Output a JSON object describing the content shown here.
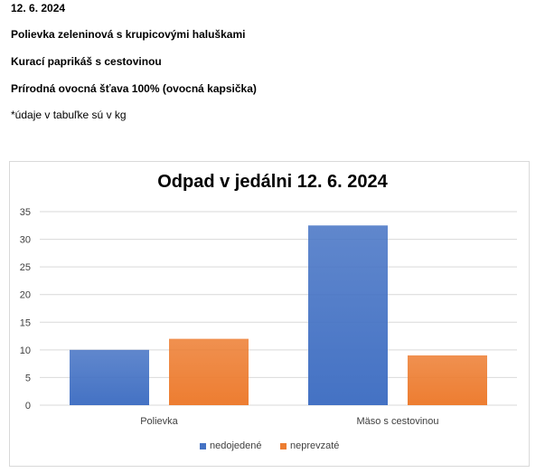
{
  "document": {
    "date": "12. 6. 2024",
    "menu_soup": "Polievka zeleninová s krupicovými haluškami",
    "menu_main": "Kurací paprikáš  s cestovinou",
    "menu_drink": "Prírodná ovocná šťava 100%  (ovocná kapsička)",
    "note": "*údaje v tabuľke sú v kg"
  },
  "colors": {
    "series1": "#4472C4",
    "series2": "#ED7D31",
    "grid": "#d9d9d9"
  },
  "chart_data": {
    "type": "bar",
    "title": "Odpad v jedálni 12. 6. 2024",
    "categories": [
      "Polievka",
      "Mäso s cestovinou"
    ],
    "series": [
      {
        "name": "nedojedené",
        "values": [
          10,
          32.5
        ]
      },
      {
        "name": "neprevzaté",
        "values": [
          12,
          9
        ]
      }
    ],
    "ylim": [
      0,
      35
    ],
    "yticks": [
      "0",
      "5",
      "10",
      "15",
      "20",
      "25",
      "30",
      "35"
    ],
    "grid": true,
    "legend": "bottom"
  }
}
